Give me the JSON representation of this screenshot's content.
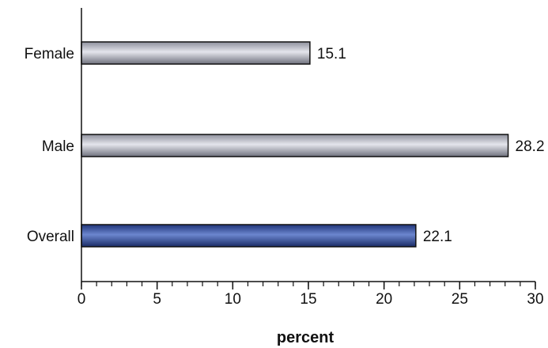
{
  "chart_data": {
    "type": "bar",
    "orientation": "horizontal",
    "categories": [
      "Female",
      "Male",
      "Overall"
    ],
    "values": [
      15.1,
      28.2,
      22.1
    ],
    "value_labels": [
      "15.1",
      "28.2",
      "22.1"
    ],
    "xlabel": "percent",
    "ylabel": "",
    "title": "",
    "xlim": [
      0,
      30
    ],
    "xticks": [
      0,
      5,
      10,
      15,
      20,
      25,
      30
    ],
    "xtick_labels": [
      "0",
      "5",
      "10",
      "15",
      "20",
      "25",
      "30"
    ],
    "minor_tick_step": 1,
    "grid": false,
    "legend": "none",
    "colors": {
      "default_bar": "#a7a9b4",
      "highlight_bar": "#2f4d9a",
      "bar_outline": "#111111",
      "axis": "#111111"
    },
    "highlight_category": "Overall"
  }
}
